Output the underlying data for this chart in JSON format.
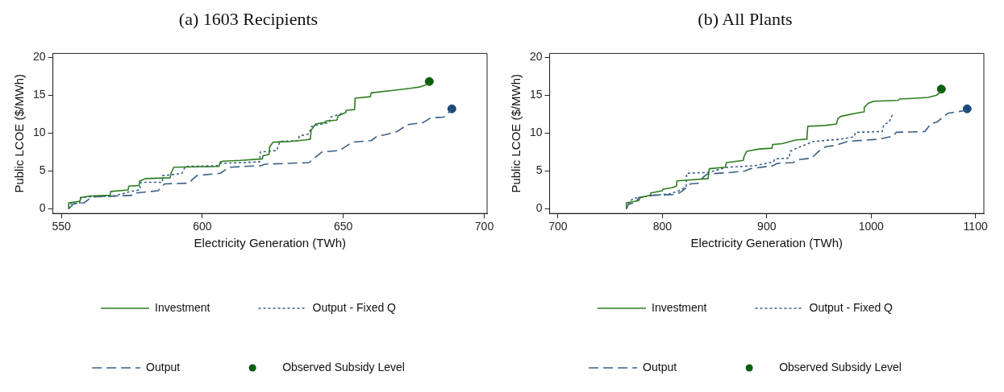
{
  "chart_data": [
    {
      "type": "line",
      "title": "(a) 1603 Recipients",
      "xlabel": "Electricity Generation (TWh)",
      "ylabel": "Public LCOE ($/MWh)",
      "xlim": [
        547,
        701
      ],
      "xticks": [
        550,
        600,
        650,
        700
      ],
      "ylim": [
        -0.6,
        20.5
      ],
      "yticks": [
        0,
        5,
        10,
        15,
        20
      ],
      "grid": false,
      "legend": "bottom",
      "series": [
        {
          "name": "Investment",
          "type": "line",
          "line_style": "solid",
          "color": "#2e7d1f",
          "x": [
            552.6,
            552.6,
            556.5,
            557,
            560,
            567.3,
            567.5,
            573.7,
            573.9,
            577.6,
            577.8,
            580,
            588.6,
            588.9,
            589.9,
            605.9,
            606.4,
            607.4,
            613.6,
            621.3,
            621.5,
            623.7,
            623.9,
            625.1,
            631.1,
            636.7,
            638.3,
            638.6,
            640.3,
            643.4,
            643.9,
            647.7,
            648.2,
            650.8,
            651.1,
            654,
            654.2,
            659.6,
            659.9,
            667.1,
            673.8,
            677.4,
            680.5
          ],
          "values": [
            0,
            0.8,
            1,
            1.5,
            1.7,
            1.8,
            2.3,
            2.5,
            3,
            3.1,
            3.7,
            4,
            4.1,
            4.7,
            5.5,
            5.6,
            6.2,
            6.3,
            6.4,
            6.6,
            7,
            7.2,
            8.2,
            8.8,
            8.9,
            9.1,
            9.2,
            10.4,
            11.2,
            11.4,
            11.6,
            11.7,
            12.3,
            12.7,
            13,
            13.1,
            14.6,
            14.8,
            15.3,
            15.6,
            15.9,
            16.1,
            16.5
          ]
        },
        {
          "name": "Output - Fixed Q",
          "type": "line",
          "line_style": "dotted",
          "color": "#3a5f85",
          "x": [
            552.6,
            553.4,
            556.5,
            556.8,
            560.6,
            568.8,
            574.5,
            577.8,
            578.1,
            585.8,
            586,
            588.9,
            592.8,
            594,
            605.3,
            605.9,
            620.3,
            620.6,
            626.4,
            627.5,
            634,
            634.4,
            637.8,
            638.8,
            645,
            645.5,
            649.6
          ],
          "values": [
            0,
            0.7,
            0.7,
            1.5,
            1.6,
            1.7,
            2.3,
            2.5,
            3.5,
            3.5,
            4.4,
            4.5,
            4.7,
            5.6,
            5.7,
            6,
            6.2,
            7.5,
            7.7,
            8.9,
            9,
            9.6,
            9.9,
            10.9,
            11.4,
            12.1,
            12.6
          ]
        },
        {
          "name": "Output",
          "type": "line",
          "line_style": "dashed",
          "color": "#3a5f85",
          "x": [
            552.6,
            554.4,
            558,
            560.6,
            562.1,
            575.5,
            576.5,
            584.3,
            586.6,
            595.1,
            598.1,
            606.4,
            609.5,
            620.8,
            622.3,
            637.8,
            642.4,
            648.6,
            653.2,
            659.9,
            662,
            665.1,
            669.1,
            672.7,
            678.4,
            681,
            685.6,
            688.5
          ],
          "values": [
            0,
            0.7,
            0.8,
            1.5,
            1.6,
            1.8,
            2.1,
            2.4,
            3.3,
            3.4,
            4.4,
            4.7,
            5.5,
            5.7,
            5.9,
            6.1,
            7.5,
            7.7,
            8.8,
            9,
            9.6,
            9.8,
            10.2,
            11.1,
            11.4,
            12,
            12.1,
            13.1
          ]
        },
        {
          "name": "Observed Subsidy Level",
          "type": "scatter",
          "marker": "circle",
          "color": "#0b5e0b",
          "colors": [
            "#0b5e0b",
            "#1c4a78"
          ],
          "x": [
            680.5,
            688.5
          ],
          "values": [
            16.8,
            13.2
          ]
        }
      ]
    },
    {
      "type": "line",
      "title": "(b) All Plants",
      "xlabel": "Electricity Generation (TWh)",
      "ylabel": "Public LCOE ($/MWh)",
      "xlim": [
        692,
        1108
      ],
      "xticks": [
        700,
        800,
        900,
        1000,
        1100
      ],
      "ylim": [
        -0.6,
        20.5
      ],
      "yticks": [
        0,
        5,
        10,
        15,
        20
      ],
      "grid": false,
      "legend": "bottom",
      "series": [
        {
          "name": "Investment",
          "type": "line",
          "line_style": "solid",
          "color": "#2e7d1f",
          "x": [
            765.6,
            765.6,
            777.4,
            778.8,
            788.4,
            788.9,
            799.9,
            800.7,
            809,
            813.6,
            813.9,
            843.8,
            844.9,
            860.3,
            861.4,
            877.6,
            878.2,
            880.9,
            892.7,
            905.1,
            905.6,
            914.7,
            928.4,
            938.5,
            939.3,
            955.8,
            966.8,
            968.1,
            970.9,
            985.1,
            992.9,
            993.4,
            997,
            1002.5,
            1025.8,
            1027.2,
            1043.7,
            1054.7,
            1062.9,
            1067
          ],
          "values": [
            0,
            0.8,
            1.1,
            1.5,
            1.8,
            2.1,
            2.4,
            2.6,
            2.8,
            3,
            3.7,
            4,
            5.3,
            5.5,
            6.1,
            6.4,
            6.9,
            7.6,
            7.9,
            8,
            8.5,
            8.6,
            9.1,
            9.2,
            10.9,
            11,
            11.2,
            11.9,
            12.2,
            12.6,
            12.8,
            13.4,
            13.9,
            14.2,
            14.3,
            14.5,
            14.6,
            14.7,
            15,
            15.5
          ]
        },
        {
          "name": "Output - Fixed Q",
          "type": "line",
          "line_style": "dotted",
          "color": "#3a5f85",
          "x": [
            765.6,
            767,
            771.9,
            777.4,
            791.1,
            807.6,
            815.8,
            822.7,
            823.3,
            843.3,
            862.5,
            888.6,
            906.4,
            907.8,
            921.5,
            922.4,
            928.4,
            944.9,
            971,
            983.4,
            985.3,
            1010.7,
            1012.1,
            1017.6,
            1019,
            1021.7
          ],
          "values": [
            0,
            0.6,
            1.4,
            1.5,
            1.8,
            2,
            2.4,
            2.9,
            4.7,
            4.8,
            5.5,
            5.7,
            6.2,
            6.6,
            6.7,
            7.6,
            8,
            8.9,
            9.2,
            9.5,
            10.1,
            10.2,
            11.1,
            11.5,
            12.1,
            12.6
          ]
        },
        {
          "name": "Output",
          "type": "line",
          "line_style": "dashed",
          "color": "#3a5f85",
          "x": [
            765.6,
            767,
            769.2,
            774.1,
            777.4,
            791.1,
            813.1,
            818.6,
            826.8,
            835,
            839.2,
            843.3,
            865.3,
            879,
            884.5,
            905.9,
            910,
            925.1,
            930.6,
            943,
            949.8,
            956.7,
            966.3,
            977.3,
            1007.5,
            1021.3,
            1024,
            1051.5,
            1057,
            1063.7,
            1067.9,
            1073.4,
            1091.2
          ],
          "values": [
            0,
            0.5,
            0.7,
            0.8,
            1.5,
            1.8,
            1.9,
            2.3,
            3.3,
            3.4,
            4.2,
            4.6,
            4.8,
            5,
            5.3,
            5.7,
            6,
            6.1,
            6.5,
            6.7,
            7.6,
            8.2,
            8.4,
            8.9,
            9.2,
            9.6,
            10.1,
            10.2,
            11.2,
            11.5,
            12,
            12.6,
            13
          ]
        },
        {
          "name": "Observed Subsidy Level",
          "type": "scatter",
          "marker": "circle",
          "color": "#0b5e0b",
          "colors": [
            "#0b5e0b",
            "#1c4a78"
          ],
          "x": [
            1067.3,
            1092
          ],
          "values": [
            15.8,
            13.2
          ]
        }
      ]
    }
  ]
}
